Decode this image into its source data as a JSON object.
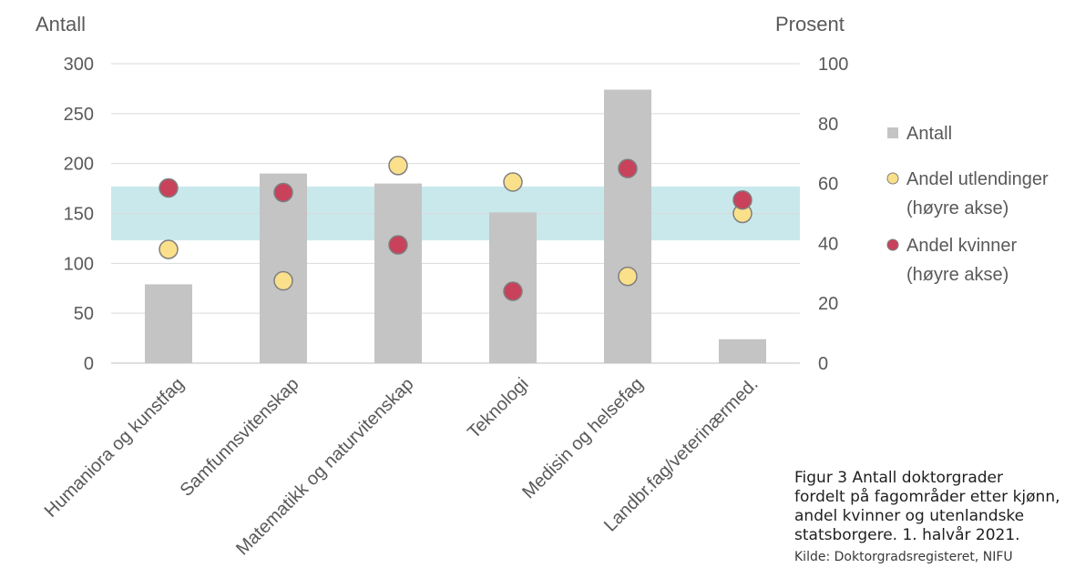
{
  "chart_data": {
    "type": "bar",
    "categories": [
      "Humaniora og kunstfag",
      "Samfunnsvitenskap",
      "Matematikk og naturvitenskap",
      "Teknologi",
      "Medisin og helsefag",
      "Landbr.fag/veterinærmed."
    ],
    "series": [
      {
        "name": "Antall",
        "type": "bar",
        "axis": "left",
        "color": "#c4c4c4",
        "values": [
          79,
          190,
          180,
          151,
          274,
          24
        ]
      },
      {
        "name": "Andel utlendinger (høyre akse)",
        "type": "scatter",
        "axis": "right",
        "color": "#fbe08c",
        "values": [
          38,
          27.5,
          66,
          60.5,
          29,
          50
        ]
      },
      {
        "name": "Andel kvinner (høyre akse)",
        "type": "scatter",
        "axis": "right",
        "color": "#c8425b",
        "values": [
          58.5,
          57,
          39.5,
          24,
          65,
          54.5
        ]
      }
    ],
    "left_axis": {
      "title": "Antall",
      "ylim": [
        0,
        300
      ],
      "ticks": [
        "0",
        "50",
        "100",
        "150",
        "200",
        "250",
        "300"
      ]
    },
    "right_axis": {
      "title": "Prosent",
      "ylim": [
        0,
        100
      ],
      "ticks": [
        "0",
        "20",
        "40",
        "60",
        "80",
        "100"
      ]
    },
    "reference_band": {
      "axis": "right",
      "from": 41,
      "to": 59,
      "color": "#c9e8ec"
    },
    "legend": {
      "placement": "right",
      "items": [
        {
          "lines": [
            "Antall"
          ],
          "marker": "square",
          "color": "#c4c4c4"
        },
        {
          "lines": [
            "Andel utlendinger",
            "(høyre akse)"
          ],
          "marker": "circle",
          "color": "#fbe08c"
        },
        {
          "lines": [
            "Andel kvinner",
            "(høyre akse)"
          ],
          "marker": "circle",
          "color": "#c8425b"
        }
      ]
    },
    "grid": true
  },
  "caption": {
    "lines": [
      "Figur 3 Antall doktorgrader",
      "fordelt på fagområder etter kjønn,",
      "andel kvinner og utenlandske",
      "statsborgere. 1. halvår 2021."
    ],
    "source": "Kilde: Doktorgradsregisteret, NIFU"
  }
}
